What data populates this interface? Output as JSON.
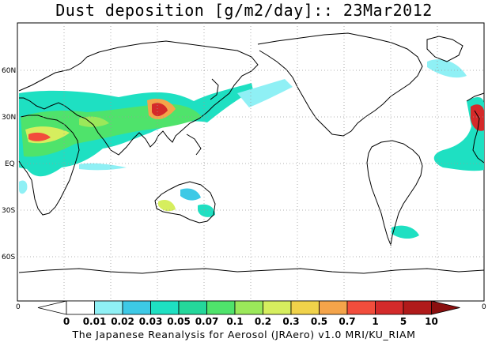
{
  "title": "Dust deposition [g/m2/day]:: 23Mar2012",
  "latitude_labels": [
    "60N",
    "30N",
    "EQ",
    "30S",
    "60S"
  ],
  "edge_labels": {
    "left": "0",
    "right": "0"
  },
  "colorbar": {
    "levels": [
      "0",
      "0.01",
      "0.02",
      "0.03",
      "0.05",
      "0.07",
      "0.1",
      "0.2",
      "0.3",
      "0.5",
      "0.7",
      "1",
      "5",
      "10"
    ],
    "colors": [
      "#ffffff",
      "#ffffff",
      "#8ff0f5",
      "#3dc9e6",
      "#1ee0c2",
      "#24d79b",
      "#4fe36b",
      "#9be85a",
      "#d6ee5e",
      "#f0d24a",
      "#f4a44a",
      "#f24d3c",
      "#d42a2a",
      "#b01a1a",
      "#8a0f0f"
    ]
  },
  "footer": "The Japanese Reanalysis for Aerosol (JRAero) v1.0 MRI/KU_RIAM"
}
